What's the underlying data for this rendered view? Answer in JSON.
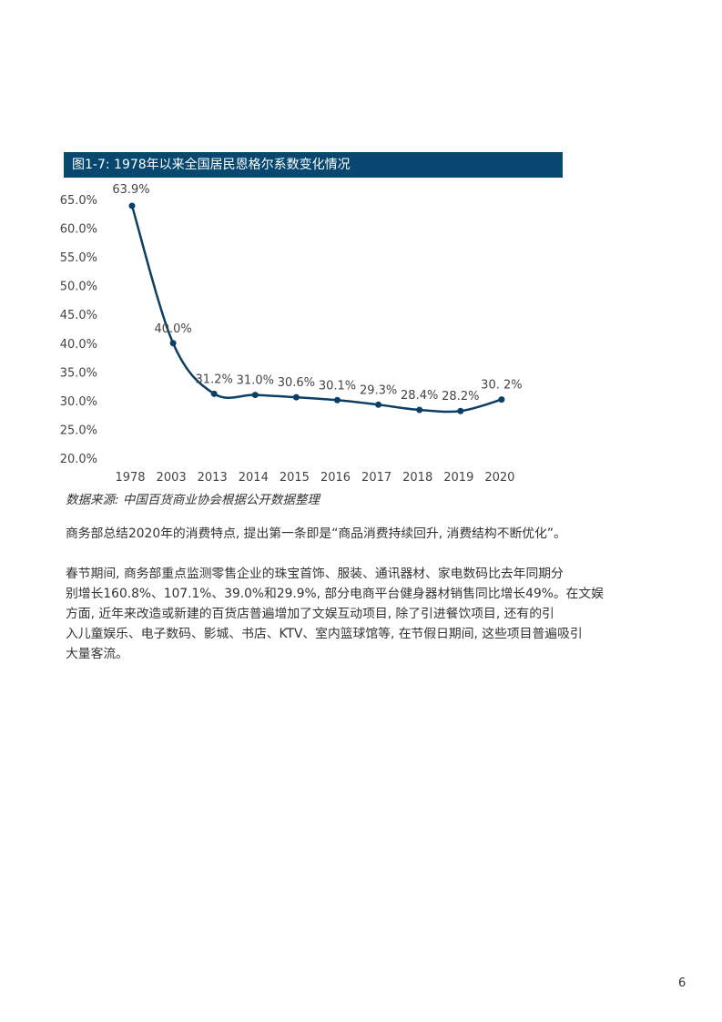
{
  "chart_data": {
    "type": "line",
    "title": "图1-7: 1978年以来全国居民恩格尔系数变化情况",
    "categories": [
      "1978",
      "2003",
      "2013",
      "2014",
      "2015",
      "2016",
      "2017",
      "2018",
      "2019",
      "2020"
    ],
    "values": [
      63.9,
      40.0,
      31.2,
      31.0,
      30.6,
      30.1,
      29.3,
      28.4,
      28.2,
      30.2
    ],
    "data_labels": [
      "63.9%",
      "40.0%",
      "31.2%",
      "31.0%",
      "30.6%",
      "30.1%",
      "29.3%",
      "28.4%",
      "28.2%",
      "30. 2%"
    ],
    "ylim": [
      20,
      65
    ],
    "yticks": [
      "20.0%",
      "25.0%",
      "30.0%",
      "35.0%",
      "40.0%",
      "45.0%",
      "50.0%",
      "55.0%",
      "60.0%",
      "65.0%"
    ],
    "ytick_values": [
      20,
      25,
      30,
      35,
      40,
      45,
      50,
      55,
      60,
      65
    ],
    "grid": false,
    "line_color": "#0b3f66",
    "title_bar_color": "#08476f",
    "source": "数据来源: 中国百货商业协会根据公开数据整理"
  },
  "body": {
    "paragraph1": "商务部总结2020年的消费特点, 提出第一条即是“商品消费持续回升, 消费结构不断优化”。",
    "paragraph2_lines": [
      "春节期间, 商务部重点监测零售企业的珠宝首饰、服装、通讯器材、家电数码比去年同期分",
      "别增长160.8%、107.1%、39.0%和29.9%, 部分电商平台健身器材销售同比增长49%。在文娱",
      "方面, 近年来改造或新建的百货店普遍增加了文娱互动项目, 除了引进餐饮项目, 还有的引",
      "入儿童娱乐、电子数码、影城、书店、KTV、室内篮球馆等, 在节假日期间, 这些项目普遍吸引",
      "大量客流。"
    ]
  },
  "page_number": "6"
}
